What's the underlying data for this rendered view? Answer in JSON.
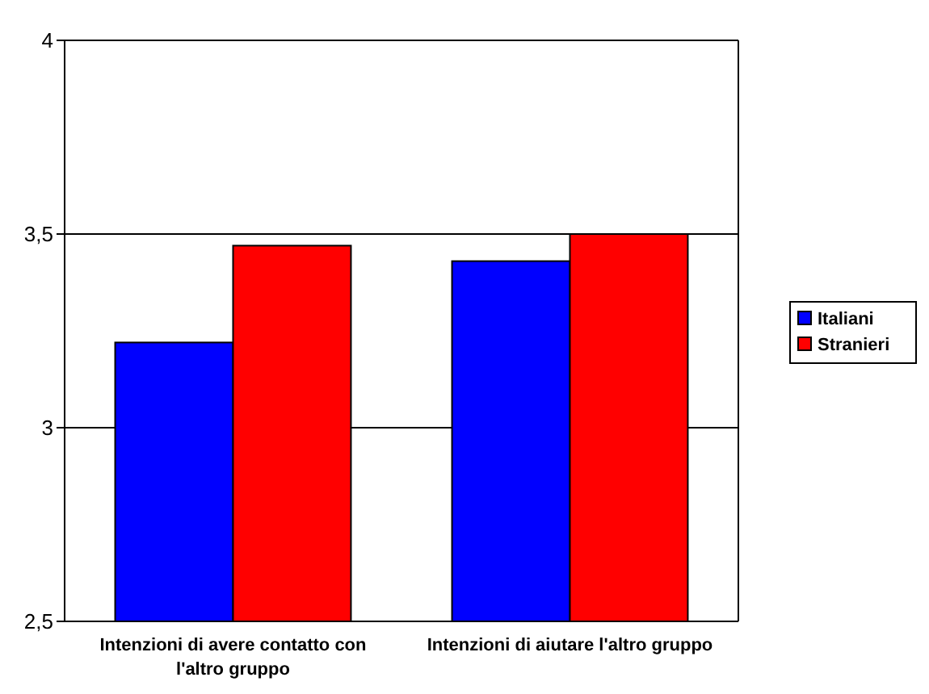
{
  "chart_data": {
    "type": "bar",
    "categories": [
      "Intenzioni di avere contatto con l'altro gruppo",
      "Intenzioni di aiutare l'altro gruppo"
    ],
    "series": [
      {
        "name": "Italiani",
        "color": "#0000ff",
        "values": [
          3.22,
          3.43
        ]
      },
      {
        "name": "Stranieri",
        "color": "#ff0000",
        "values": [
          3.47,
          3.5
        ]
      }
    ],
    "ylim": [
      2.5,
      4
    ],
    "yticks": [
      {
        "value": 2.5,
        "label": "2,5"
      },
      3,
      {
        "value": 3.5,
        "label": "3,5"
      },
      4
    ],
    "grid": "y",
    "legend": "right"
  }
}
